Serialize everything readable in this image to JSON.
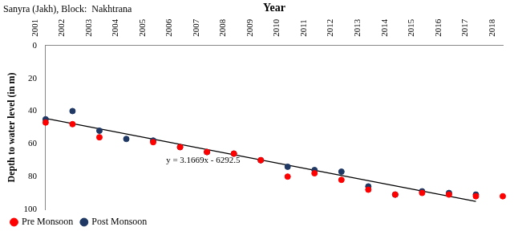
{
  "chart_data": {
    "type": "scatter",
    "title": "Sanyra (Jakh), Block:  Nakhtrana",
    "x_label": "Year",
    "y_label": "Depth to water level (in m)",
    "x": [
      2001,
      2002,
      2003,
      2004,
      2005,
      2006,
      2007,
      2008,
      2009,
      2010,
      2011,
      2012,
      2013,
      2014,
      2015,
      2016,
      2017,
      2018
    ],
    "series": [
      {
        "name": "Pre Monsoon",
        "color": "#ff0000",
        "marker": "circle",
        "values": [
          47,
          48,
          56,
          null,
          59,
          62,
          65,
          66,
          70,
          80,
          78,
          82,
          88,
          91,
          90,
          91,
          92,
          92
        ]
      },
      {
        "name": "Post Monsoon",
        "color": "#1f3864",
        "marker": "circle",
        "values": [
          45,
          40,
          52,
          57,
          58,
          62,
          65,
          66,
          70,
          74,
          76,
          77,
          86,
          91,
          89,
          90,
          91,
          null
        ]
      }
    ],
    "trendline": {
      "label": "y = 3.1669x - 6292.5",
      "slope": 3.1669,
      "intercept": -6292.5,
      "x": [
        2001,
        2017
      ],
      "color": "#000000"
    },
    "xlim": [
      2001,
      2018
    ],
    "xticks": [
      2001,
      2002,
      2003,
      2004,
      2005,
      2006,
      2007,
      2008,
      2009,
      2010,
      2011,
      2012,
      2013,
      2014,
      2015,
      2016,
      2017,
      2018
    ],
    "ylim": [
      100,
      0
    ],
    "yticks": [
      0,
      20,
      40,
      60,
      80,
      100
    ],
    "grid": false,
    "legend": "bottom-left"
  }
}
